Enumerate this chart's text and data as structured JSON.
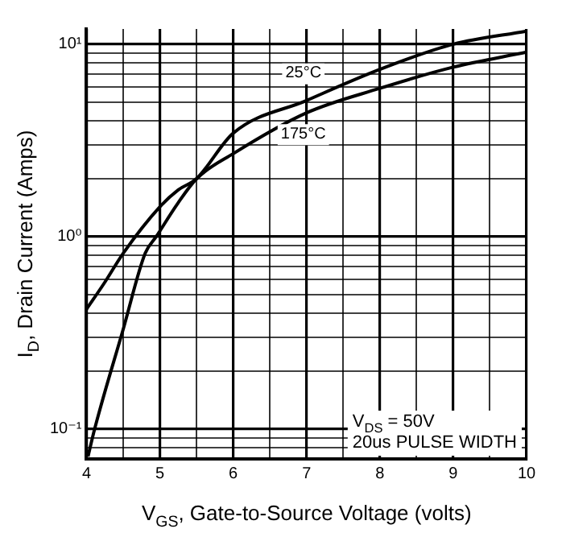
{
  "chart_data": {
    "type": "line",
    "xlabel": "V$_{GS}$, Gate-to-Source Voltage (volts)",
    "ylabel": "I$_{D}$, Drain Current (Amps)",
    "series": [
      {
        "name": "25°C",
        "color": "#000000",
        "x": [
          4,
          4.25,
          4.5,
          5,
          5.25,
          5.5,
          6,
          7,
          8,
          9,
          10
        ],
        "values": [
          0.42,
          0.58,
          0.82,
          1.43,
          1.75,
          2.0,
          3.45,
          5.1,
          7.4,
          10,
          11.7
        ]
      },
      {
        "name": "175°C",
        "color": "#000000",
        "x": [
          4.02,
          4.11,
          4.5,
          4.8,
          4.95,
          5.25,
          5.5,
          6,
          7,
          8,
          9,
          10
        ],
        "values": [
          0.072,
          0.1,
          0.33,
          0.82,
          1.0,
          1.5,
          2.0,
          2.7,
          4.4,
          5.9,
          7.6,
          9.1
        ]
      }
    ],
    "log": "y",
    "xlim": [
      4,
      10
    ],
    "ylim": [
      0.07,
      12
    ],
    "xticks": [
      4,
      {
        "value": 4.5,
        "label": null
      },
      5,
      {
        "value": 5.5,
        "label": null
      },
      6,
      {
        "value": 6.5,
        "label": null
      },
      7,
      {
        "value": 7.5,
        "label": null
      },
      8,
      {
        "value": 8.5,
        "label": null
      },
      9,
      {
        "value": 9.5,
        "label": null
      },
      10
    ],
    "yticks": [
      {
        "value": 0.08,
        "label": null
      },
      {
        "value": 0.09,
        "label": null
      },
      {
        "value": 0.1,
        "label": "10⁻¹"
      },
      {
        "value": 0.2,
        "label": null
      },
      {
        "value": 0.3,
        "label": null
      },
      {
        "value": 0.4,
        "label": null
      },
      {
        "value": 0.5,
        "label": null
      },
      {
        "value": 0.6,
        "label": null
      },
      {
        "value": 0.7,
        "label": null
      },
      {
        "value": 0.8,
        "label": null
      },
      {
        "value": 0.9,
        "label": null
      },
      {
        "value": 1,
        "label": "10⁰"
      },
      {
        "value": 2,
        "label": null
      },
      {
        "value": 3,
        "label": null
      },
      {
        "value": 4,
        "label": null
      },
      {
        "value": 5,
        "label": null
      },
      {
        "value": 6,
        "label": null
      },
      {
        "value": 7,
        "label": null
      },
      {
        "value": 8,
        "label": null
      },
      {
        "value": 9,
        "label": null
      },
      {
        "value": 10,
        "label": "10¹"
      }
    ],
    "grid": true,
    "legend": false,
    "marker": "none",
    "line_style": "solid",
    "annotations": [
      "V$_{DS}$ = 50V",
      "20us PULSE WIDTH"
    ]
  }
}
